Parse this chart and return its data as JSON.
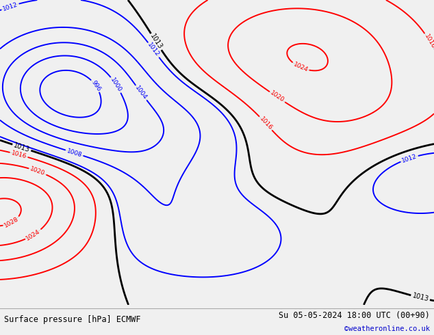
{
  "title_left": "Surface pressure [hPa] ECMWF",
  "title_right": "Su 05-05-2024 18:00 UTC (00+90)",
  "copyright": "©weatheronline.co.uk",
  "bg_color": "#c8dfc8",
  "bottom_bar_color": "#f0f0f0",
  "label_fontsize": 8.5,
  "copyright_color": "#0000cc",
  "figsize": [
    6.34,
    4.9
  ],
  "dpi": 100
}
